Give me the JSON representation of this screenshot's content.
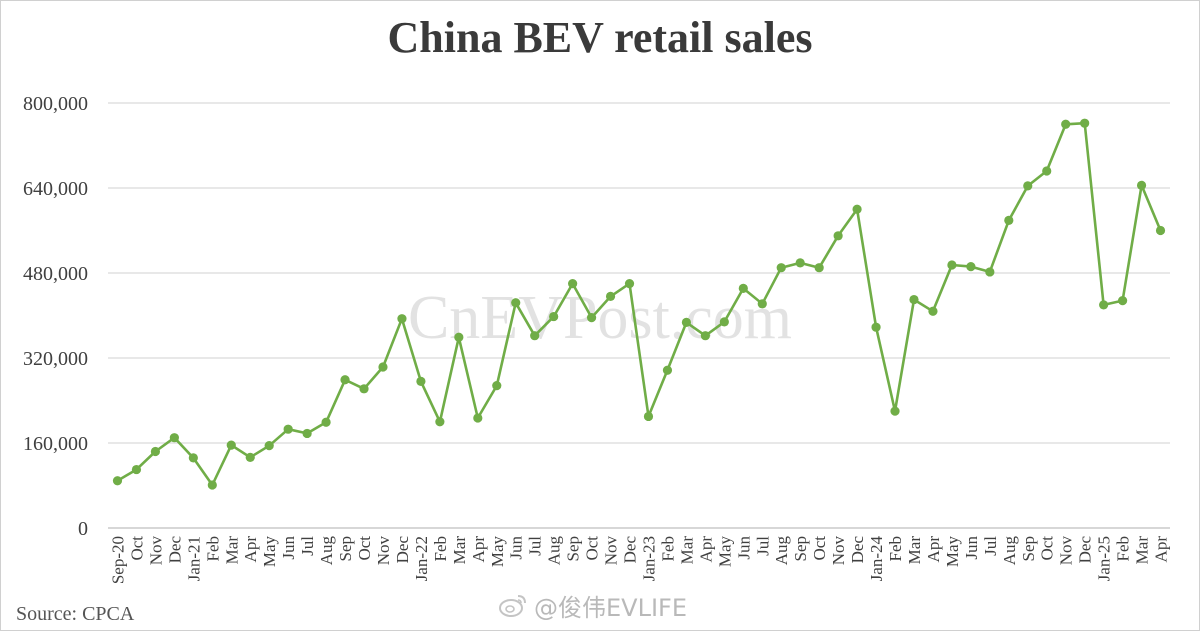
{
  "watermark": "CnEVPost.com",
  "source": "Source: CPCA",
  "weibo_handle": "@俊伟EVLIFE",
  "chart_data": {
    "type": "line",
    "title": "China BEV retail sales",
    "xlabel": "",
    "ylabel": "",
    "ylim": [
      0,
      800000
    ],
    "yticks": [
      0,
      160000,
      320000,
      480000,
      640000,
      800000
    ],
    "ytick_labels": [
      "0",
      "160,000",
      "320,000",
      "480,000",
      "640,000",
      "800,000"
    ],
    "grid": true,
    "legend": "none",
    "line_color": "#70ad47",
    "categories": [
      "Sep-20",
      "Oct",
      "Nov",
      "Dec",
      "Jan-21",
      "Feb",
      "Mar",
      "Apr",
      "May",
      "Jun",
      "Jul",
      "Aug",
      "Sep",
      "Oct",
      "Nov",
      "Dec",
      "Jan-22",
      "Feb",
      "Mar",
      "Apr",
      "May",
      "Jun",
      "Jul",
      "Aug",
      "Sep",
      "Oct",
      "Nov",
      "Dec",
      "Jan-23",
      "Feb",
      "Mar",
      "Apr",
      "May",
      "Jun",
      "Jul",
      "Aug",
      "Sep",
      "Oct",
      "Nov",
      "Dec",
      "Jan-24",
      "Feb",
      "Mar",
      "Apr",
      "May",
      "Jun",
      "Jul",
      "Aug",
      "Sep",
      "Oct",
      "Nov",
      "Dec",
      "Jan-25",
      "Feb",
      "Mar",
      "Apr"
    ],
    "values": [
      89000,
      110000,
      144000,
      170000,
      132000,
      81000,
      156000,
      133000,
      155000,
      186000,
      178000,
      199000,
      279000,
      262000,
      303000,
      394000,
      276000,
      200000,
      359000,
      207000,
      268000,
      424000,
      362000,
      398000,
      460000,
      396000,
      436000,
      460000,
      210000,
      297000,
      387000,
      362000,
      388000,
      451000,
      422000,
      490000,
      499000,
      490000,
      550000,
      600000,
      378000,
      220000,
      430000,
      408000,
      495000,
      492000,
      482000,
      579000,
      644000,
      672000,
      760000,
      762000,
      420000,
      428000,
      645000,
      560000
    ]
  }
}
